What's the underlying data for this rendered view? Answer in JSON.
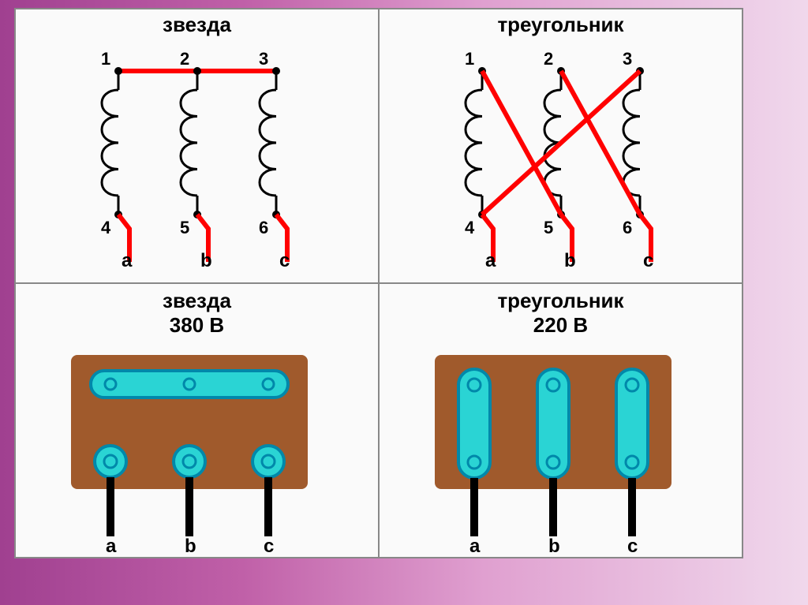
{
  "top": {
    "star": {
      "title": "звезда",
      "topLabels": [
        "1",
        "2",
        "3"
      ],
      "bottomLabels": [
        "4",
        "5",
        "6"
      ],
      "phaseLabels": [
        "a",
        "b",
        "c"
      ],
      "coilX": [
        130,
        230,
        330
      ],
      "line_color": "#ff0000",
      "coil_color": "#000000",
      "text_color": "#000000"
    },
    "delta": {
      "title": "треугольник",
      "topLabels": [
        "1",
        "2",
        "3"
      ],
      "bottomLabels": [
        "4",
        "5",
        "6"
      ],
      "phaseLabels": [
        "a",
        "b",
        "c"
      ],
      "coilX": [
        130,
        230,
        330
      ],
      "line_color": "#ff0000",
      "coil_color": "#000000",
      "text_color": "#000000"
    }
  },
  "bottom": {
    "star": {
      "title": "звезда",
      "voltage": "380 В",
      "phaseLabels": [
        "a",
        "b",
        "c"
      ],
      "box_color": "#a05a2c",
      "plate_fill": "#2ad4d4",
      "plate_stroke": "#0088aa",
      "wire_color": "#000000",
      "termX": [
        120,
        220,
        320
      ]
    },
    "delta": {
      "title": "треугольник",
      "voltage": "220 В",
      "phaseLabels": [
        "a",
        "b",
        "c"
      ],
      "box_color": "#a05a2c",
      "plate_fill": "#2ad4d4",
      "plate_stroke": "#0088aa",
      "wire_color": "#000000",
      "termX": [
        120,
        220,
        320
      ]
    }
  }
}
